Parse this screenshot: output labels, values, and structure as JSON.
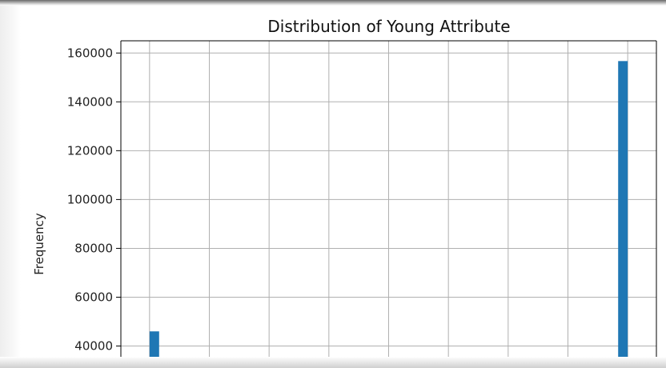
{
  "chart_data": {
    "type": "bar",
    "title": "Distribution of Young Attribute",
    "xlabel": "",
    "ylabel": "Frequency",
    "ylim": [
      31000,
      165000
    ],
    "y_ticks": [
      40000,
      60000,
      80000,
      100000,
      120000,
      140000,
      160000
    ],
    "x_range": [
      -1.12,
      1.12
    ],
    "x_grid": [
      -1.0,
      -0.75,
      -0.5,
      -0.25,
      0.0,
      0.25,
      0.5,
      0.75,
      1.0
    ],
    "grid": true,
    "legend": "none",
    "bar_width": 0.04,
    "bars": [
      {
        "x": -0.98,
        "value": 46000
      },
      {
        "x": 0.98,
        "value": 156700
      }
    ],
    "colors": {
      "bar": "#1f77b4",
      "grid": "#b0b0b0",
      "axis": "#000000"
    }
  }
}
